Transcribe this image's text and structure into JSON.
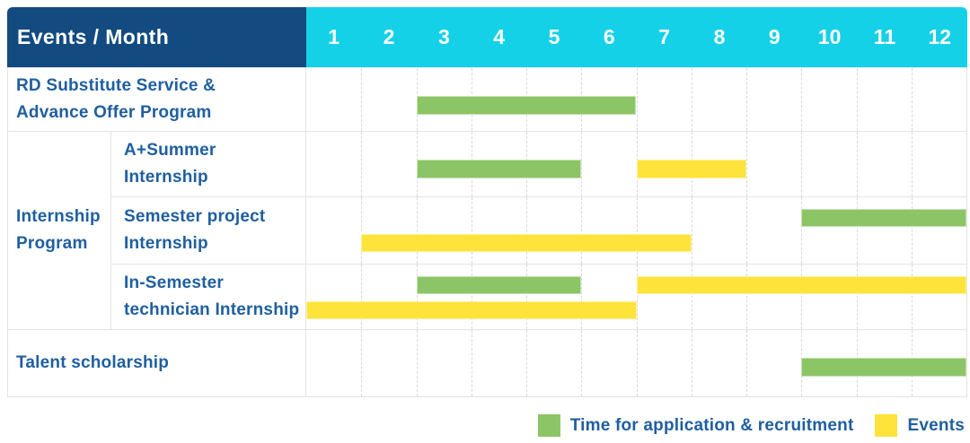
{
  "header": {
    "title": "Events / Month",
    "months": [
      "1",
      "2",
      "3",
      "4",
      "5",
      "6",
      "7",
      "8",
      "9",
      "10",
      "11",
      "12"
    ]
  },
  "colors": {
    "header_navy": "#134b81",
    "header_cyan": "#15d1e7",
    "application_green": "#8cc566",
    "event_yellow": "#fee33a",
    "label_blue": "#1f5fa0",
    "grid_border": "#e3e3e3"
  },
  "legend": {
    "items": [
      {
        "type": "application",
        "label": "Time for application & recruitment",
        "color": "#8cc566"
      },
      {
        "type": "event",
        "label": "Events",
        "color": "#fee33a"
      }
    ]
  },
  "chart_data": {
    "type": "gantt",
    "title": "Events / Month",
    "x_unit": "month",
    "x_range": [
      1,
      12
    ],
    "grid": "dashed-vertical",
    "legend_position": "bottom-right",
    "group": {
      "label": "Internship Program",
      "label_lines": [
        "Internship",
        "Program"
      ],
      "row_indices": [
        1,
        2,
        3
      ]
    },
    "bar_types": {
      "application": {
        "label": "Time for application & recruitment",
        "color": "#8cc566"
      },
      "event": {
        "label": "Events",
        "color": "#fee33a"
      }
    },
    "rows": [
      {
        "label": "RD Substitute Service & Advance Offer Program",
        "label_lines": [
          "RD Substitute Service &",
          "Advance Offer Program"
        ],
        "group": null,
        "bars": [
          {
            "type": "application",
            "start_month": 3,
            "end_month": 6,
            "lane": "single"
          }
        ]
      },
      {
        "label": "A+Summer Internship",
        "label_lines": [
          "A+Summer",
          "Internship"
        ],
        "group": "Internship Program",
        "bars": [
          {
            "type": "application",
            "start_month": 3,
            "end_month": 5,
            "lane": "single"
          },
          {
            "type": "event",
            "start_month": 7,
            "end_month": 8,
            "lane": "single"
          }
        ]
      },
      {
        "label": "Semester project Internship",
        "label_lines": [
          "Semester project",
          "Internship"
        ],
        "group": "Internship Program",
        "bars": [
          {
            "type": "application",
            "start_month": 10,
            "end_month": 12,
            "lane": "top"
          },
          {
            "type": "event",
            "start_month": 2,
            "end_month": 7,
            "lane": "bottom"
          }
        ]
      },
      {
        "label": "In-Semester technician Internship",
        "label_lines": [
          "In-Semester",
          "technician Internship"
        ],
        "group": "Internship Program",
        "bars": [
          {
            "type": "application",
            "start_month": 3,
            "end_month": 5,
            "lane": "top"
          },
          {
            "type": "event",
            "start_month": 7,
            "end_month": 12,
            "lane": "top"
          },
          {
            "type": "event",
            "start_month": 1,
            "end_month": 6,
            "lane": "bottom"
          }
        ]
      },
      {
        "label": "Talent scholarship",
        "label_lines": [
          "Talent scholarship"
        ],
        "group": null,
        "bars": [
          {
            "type": "application",
            "start_month": 10,
            "end_month": 12,
            "lane": "single"
          }
        ]
      }
    ]
  }
}
